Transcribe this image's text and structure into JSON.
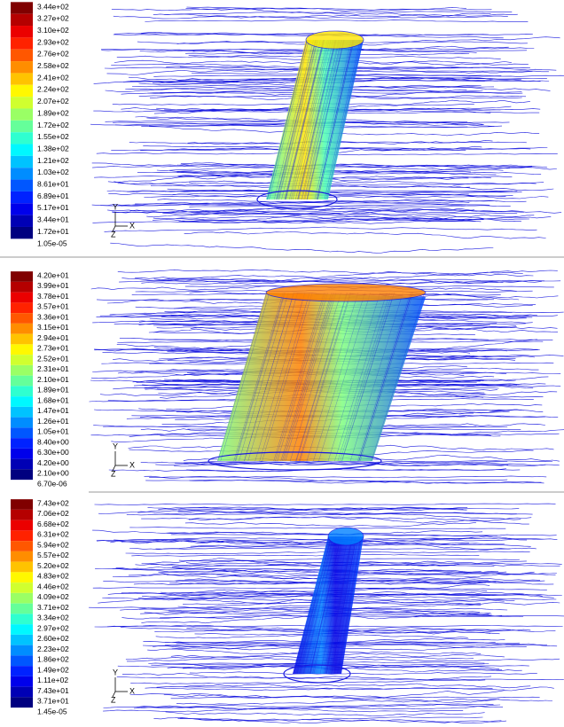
{
  "panels": [
    {
      "colorbar_labels": [
        "3.44e+02",
        "3.27e+02",
        "3.10e+02",
        "2.93e+02",
        "2.76e+02",
        "2.58e+02",
        "2.41e+02",
        "2.24e+02",
        "2.07e+02",
        "1.89e+02",
        "1.72e+02",
        "1.55e+02",
        "1.38e+02",
        "1.21e+02",
        "1.03e+02",
        "8.61e+01",
        "6.89e+01",
        "5.17e+01",
        "3.44e+01",
        "1.72e+01",
        "1.05e-05"
      ],
      "axes": {
        "y": "Y",
        "x": "X",
        "z": "Z"
      }
    },
    {
      "colorbar_labels": [
        "4.20e+01",
        "3.99e+01",
        "3.78e+01",
        "3.57e+01",
        "3.36e+01",
        "3.15e+01",
        "2.94e+01",
        "2.73e+01",
        "2.52e+01",
        "2.31e+01",
        "2.10e+01",
        "1.89e+01",
        "1.68e+01",
        "1.47e+01",
        "1.26e+01",
        "1.05e+01",
        "8.40e+00",
        "6.30e+00",
        "4.20e+00",
        "2.10e+00",
        "6.70e-06"
      ],
      "axes": {
        "y": "Y",
        "x": "X",
        "z": "Z"
      }
    },
    {
      "colorbar_labels": [
        "7.43e+02",
        "7.06e+02",
        "6.68e+02",
        "6.31e+02",
        "5.94e+02",
        "5.57e+02",
        "5.20e+02",
        "4.83e+02",
        "4.46e+02",
        "4.09e+02",
        "3.71e+02",
        "3.34e+02",
        "2.97e+02",
        "2.60e+02",
        "2.23e+02",
        "1.86e+02",
        "1.49e+02",
        "1.11e+02",
        "7.43e+01",
        "3.71e+01",
        "1.45e-05"
      ],
      "axes": {
        "y": "Y",
        "x": "X",
        "z": "Z"
      }
    }
  ]
}
